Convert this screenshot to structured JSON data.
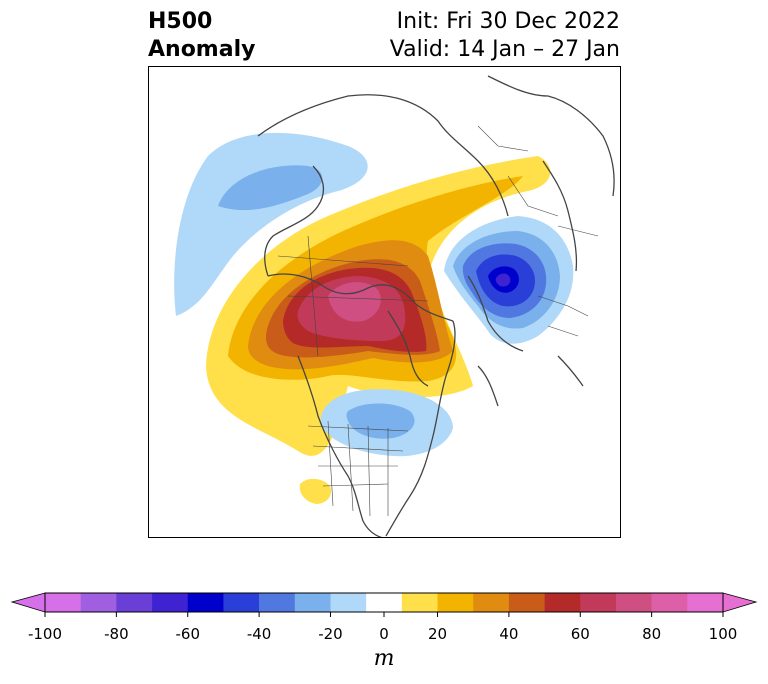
{
  "header": {
    "title_line1": "H500",
    "title_line2": "Anomaly",
    "init_label": "Init: Fri 30 Dec 2022",
    "valid_label": "Valid: 14 Jan – 27 Jan"
  },
  "map": {
    "projection": "north-polar-stereographic",
    "region": "Northern Hemisphere / North America",
    "land_outline_color": "#444444",
    "frame_color": "#000000"
  },
  "colorbar": {
    "unit": "m",
    "extend": "both",
    "ticks": [
      "-100",
      "-80",
      "-60",
      "-40",
      "-20",
      "0",
      "20",
      "40",
      "60",
      "80",
      "100"
    ],
    "levels": [
      -100,
      -90,
      -80,
      -70,
      -60,
      -50,
      -40,
      -30,
      -20,
      -10,
      10,
      20,
      30,
      40,
      50,
      60,
      70,
      80,
      90,
      100
    ],
    "colors": [
      "#d670e8",
      "#a05fe0",
      "#6a3fd8",
      "#3f22d2",
      "#0000cc",
      "#2a3fd8",
      "#5078e0",
      "#7ab0ec",
      "#b0d8f8",
      "#ffffff",
      "#ffe04a",
      "#f2b400",
      "#e08c10",
      "#c85c18",
      "#b42a28",
      "#c23a5a",
      "#cf4f82",
      "#dc5fa8",
      "#e670d2"
    ],
    "under_color": "#d670e8",
    "over_color": "#e670d2"
  }
}
